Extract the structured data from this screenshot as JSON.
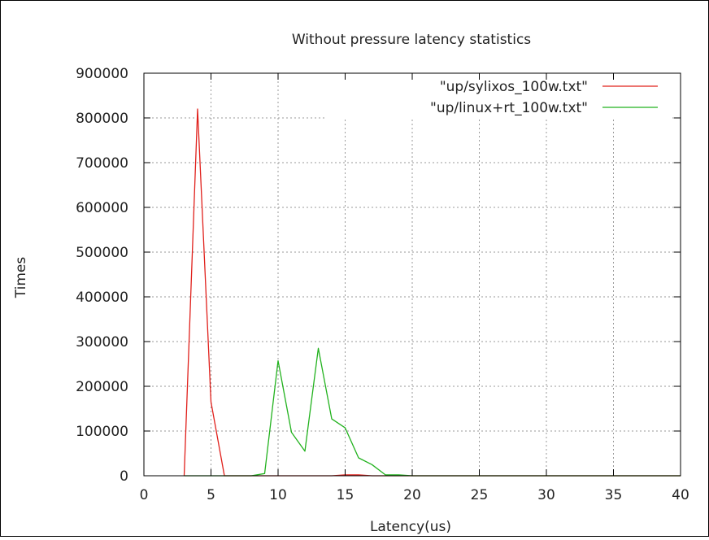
{
  "chart_data": {
    "type": "line",
    "title": "Without pressure latency statistics",
    "xlabel": "Latency(us)",
    "ylabel": "Times",
    "xlim": [
      0,
      40
    ],
    "ylim": [
      0,
      900000
    ],
    "xticks": [
      0,
      5,
      10,
      15,
      20,
      25,
      30,
      35,
      40
    ],
    "yticks": [
      0,
      100000,
      200000,
      300000,
      400000,
      500000,
      600000,
      700000,
      800000,
      900000
    ],
    "grid": true,
    "legend": "top-right",
    "series": [
      {
        "name": "\"up/sylixos_100w.txt\"",
        "color": "#e0201b",
        "x": [
          3,
          4,
          5,
          6,
          7,
          8,
          9,
          10,
          11,
          12,
          13,
          14,
          15,
          16,
          17,
          18,
          19,
          20,
          21,
          22,
          23,
          24,
          25,
          26,
          27,
          28,
          29,
          30,
          31,
          32,
          33,
          34,
          35,
          36,
          37,
          38,
          39,
          40
        ],
        "y": [
          0,
          820000,
          165000,
          0,
          0,
          0,
          0,
          0,
          0,
          0,
          0,
          0,
          2000,
          2000,
          0,
          0,
          0,
          0,
          0,
          0,
          0,
          0,
          0,
          0,
          0,
          0,
          0,
          0,
          0,
          0,
          0,
          0,
          0,
          0,
          0,
          0,
          0,
          0
        ]
      },
      {
        "name": "\"up/linux+rt_100w.txt\"",
        "color": "#22b21e",
        "x": [
          3,
          4,
          5,
          6,
          7,
          8,
          9,
          10,
          11,
          12,
          13,
          14,
          15,
          16,
          17,
          18,
          19,
          20,
          21,
          22,
          23,
          24,
          25,
          26,
          27,
          28,
          29,
          30,
          31,
          32,
          33,
          34,
          35,
          36,
          37,
          38,
          39,
          40
        ],
        "y": [
          0,
          0,
          0,
          0,
          0,
          0,
          5000,
          257000,
          97000,
          55000,
          285000,
          127000,
          107000,
          40000,
          25000,
          2000,
          2000,
          0,
          0,
          0,
          0,
          0,
          0,
          0,
          0,
          0,
          0,
          0,
          0,
          0,
          0,
          0,
          0,
          0,
          0,
          0,
          0,
          0
        ]
      }
    ]
  }
}
